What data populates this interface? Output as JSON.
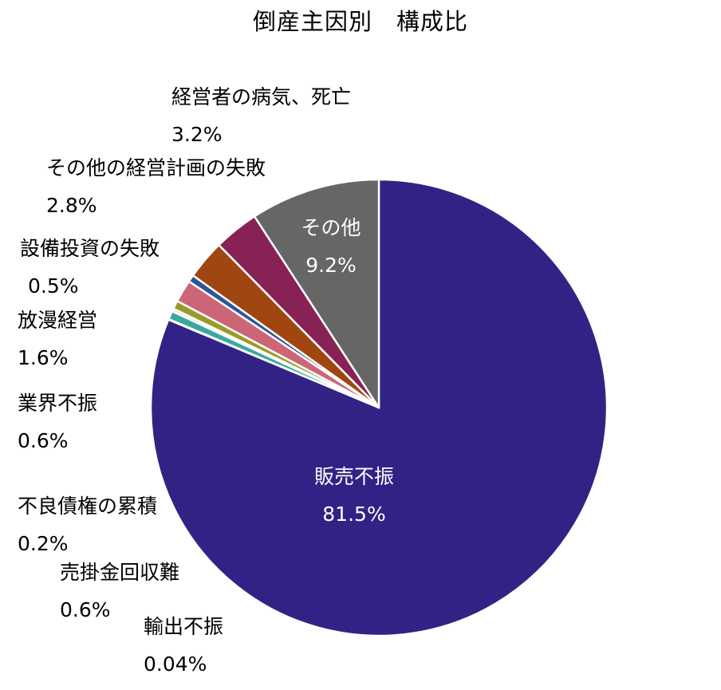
{
  "chart_data": {
    "type": "pie",
    "title": "倒産主因別　構成比",
    "start_angle_deg": 0,
    "direction": "clockwise",
    "slices": [
      {
        "label": "販売不振",
        "value_label": "81.5%",
        "value": 81.5,
        "color": "#332285"
      },
      {
        "label": "輸出不振",
        "value_label": "0.04%",
        "value": 0.04,
        "color": "#1f4e79"
      },
      {
        "label": "売掛金回収難",
        "value_label": "0.6%",
        "value": 0.6,
        "color": "#3aa8a0"
      },
      {
        "label": "不良債権の累積",
        "value_label": "0.2%",
        "value": 0.2,
        "color": "#e0e0e0"
      },
      {
        "label": "業界不振",
        "value_label": "0.6%",
        "value": 0.6,
        "color": "#9a9a2c"
      },
      {
        "label": "放漫経営",
        "value_label": "1.6%",
        "value": 1.6,
        "color": "#cc6677"
      },
      {
        "label": "設備投資の失敗",
        "value_label": "0.5%",
        "value": 0.5,
        "color": "#2b5797"
      },
      {
        "label": "その他の経営計画の失敗",
        "value_label": "2.8%",
        "value": 2.8,
        "color": "#a04610"
      },
      {
        "label": "経営者の病気、死亡",
        "value_label": "3.2%",
        "value": 3.2,
        "color": "#882255"
      },
      {
        "label": "その他",
        "value_label": "9.2%",
        "value": 9.2,
        "color": "#666666"
      }
    ]
  }
}
